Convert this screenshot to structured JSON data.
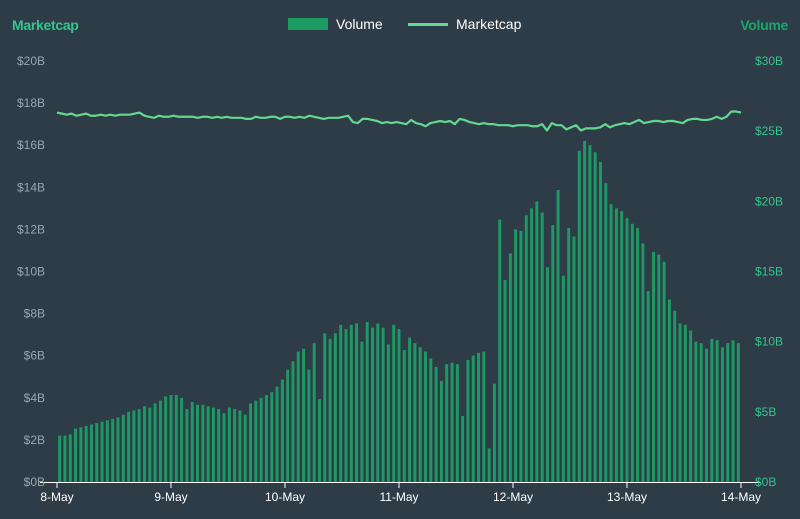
{
  "chart_data": {
    "type": "bar+line",
    "left_axis_title": "Marketcap",
    "right_axis_title": "Volume",
    "legend": [
      {
        "label": "Volume",
        "swatch": "bar",
        "color": "#1d9a63"
      },
      {
        "label": "Marketcap",
        "swatch": "line",
        "color": "#63d88e"
      }
    ],
    "legend_position": "top-center",
    "x_ticks": [
      "8-May",
      "9-May",
      "10-May",
      "11-May",
      "12-May",
      "13-May",
      "14-May"
    ],
    "left_ticks": [
      "$0B",
      "$2B",
      "$4B",
      "$6B",
      "$8B",
      "$10B",
      "$12B",
      "$14B",
      "$16B",
      "$18B",
      "$20B"
    ],
    "right_ticks": [
      "$0B",
      "$5B",
      "$10B",
      "$15B",
      "$20B",
      "$25B",
      "$30B"
    ],
    "left_ylim": [
      0,
      20
    ],
    "right_ylim": [
      0,
      30
    ],
    "x_range_days": [
      0,
      6
    ],
    "grid": false,
    "series": [
      {
        "name": "Volume",
        "axis": "right",
        "kind": "bar",
        "color": "#1d9a63",
        "values": [
          3.3,
          3.3,
          3.4,
          3.8,
          3.9,
          4.0,
          4.1,
          4.2,
          4.3,
          4.4,
          4.5,
          4.6,
          4.8,
          5.0,
          5.1,
          5.2,
          5.4,
          5.3,
          5.6,
          5.8,
          6.1,
          6.2,
          6.2,
          6.0,
          5.2,
          5.7,
          5.5,
          5.5,
          5.4,
          5.3,
          5.2,
          4.9,
          5.3,
          5.2,
          5.1,
          4.8,
          5.6,
          5.8,
          6.0,
          6.2,
          6.4,
          6.8,
          7.3,
          8.0,
          8.6,
          9.3,
          9.5,
          8.0,
          9.9,
          5.9,
          10.6,
          10.2,
          10.6,
          11.2,
          10.9,
          11.2,
          11.3,
          10.0,
          11.4,
          11.0,
          11.3,
          11.0,
          9.8,
          11.2,
          10.9,
          9.4,
          10.3,
          9.9,
          9.6,
          9.3,
          8.8,
          8.2,
          7.2,
          8.4,
          8.5,
          8.4,
          4.7,
          8.7,
          9.0,
          9.2,
          9.3,
          2.4,
          7.0,
          18.7,
          14.4,
          16.3,
          18.0,
          17.9,
          19.0,
          19.5,
          20.0,
          19.2,
          15.3,
          18.3,
          20.8,
          14.7,
          18.1,
          17.5,
          23.6,
          24.3,
          24.0,
          23.5,
          22.8,
          21.3,
          19.8,
          19.5,
          19.3,
          18.8,
          18.4,
          18.1,
          17.0,
          13.6,
          16.4,
          16.2,
          15.7,
          13.0,
          12.2,
          11.3,
          11.2,
          10.8,
          10.0,
          9.9,
          9.5,
          10.2,
          10.1,
          9.6,
          9.9,
          10.1,
          9.9
        ],
        "note_units": "billions USD"
      },
      {
        "name": "Marketcap",
        "axis": "left",
        "kind": "line",
        "color": "#63d88e",
        "values": [
          17.55,
          17.5,
          17.45,
          17.5,
          17.4,
          17.45,
          17.5,
          17.4,
          17.4,
          17.45,
          17.4,
          17.45,
          17.4,
          17.45,
          17.45,
          17.45,
          17.5,
          17.55,
          17.4,
          17.35,
          17.3,
          17.4,
          17.35,
          17.35,
          17.4,
          17.35,
          17.35,
          17.35,
          17.35,
          17.3,
          17.35,
          17.35,
          17.3,
          17.35,
          17.3,
          17.35,
          17.3,
          17.3,
          17.3,
          17.25,
          17.25,
          17.35,
          17.3,
          17.3,
          17.35,
          17.35,
          17.25,
          17.35,
          17.35,
          17.3,
          17.35,
          17.3,
          17.4,
          17.35,
          17.3,
          17.25,
          17.3,
          17.3,
          17.3,
          17.35,
          17.4,
          17.1,
          17.05,
          17.25,
          17.25,
          17.2,
          17.15,
          17.05,
          17.1,
          17.05,
          17.1,
          17.05,
          17.0,
          17.2,
          17.05,
          17.0,
          16.9,
          17.05,
          17.1,
          17.15,
          17.1,
          17.15,
          17.0,
          17.25,
          17.2,
          17.1,
          17.05,
          17.0,
          17.05,
          17.0,
          17.0,
          16.95,
          16.95,
          16.95,
          16.9,
          16.95,
          16.95,
          16.95,
          16.9,
          16.9,
          17.0,
          16.7,
          17.05,
          16.95,
          16.95,
          16.75,
          16.85,
          16.95,
          16.7,
          16.8,
          16.8,
          16.8,
          16.85,
          17.0,
          16.85,
          16.95,
          17.0,
          17.05,
          17.0,
          17.1,
          17.2,
          17.05,
          17.1,
          17.15,
          17.15,
          17.1,
          17.15,
          17.15,
          17.1,
          17.05,
          17.2,
          17.25,
          17.25,
          17.2,
          17.2,
          17.25,
          17.35,
          17.25,
          17.35,
          17.6,
          17.6,
          17.55
        ],
        "note_units": "billions USD"
      }
    ]
  }
}
